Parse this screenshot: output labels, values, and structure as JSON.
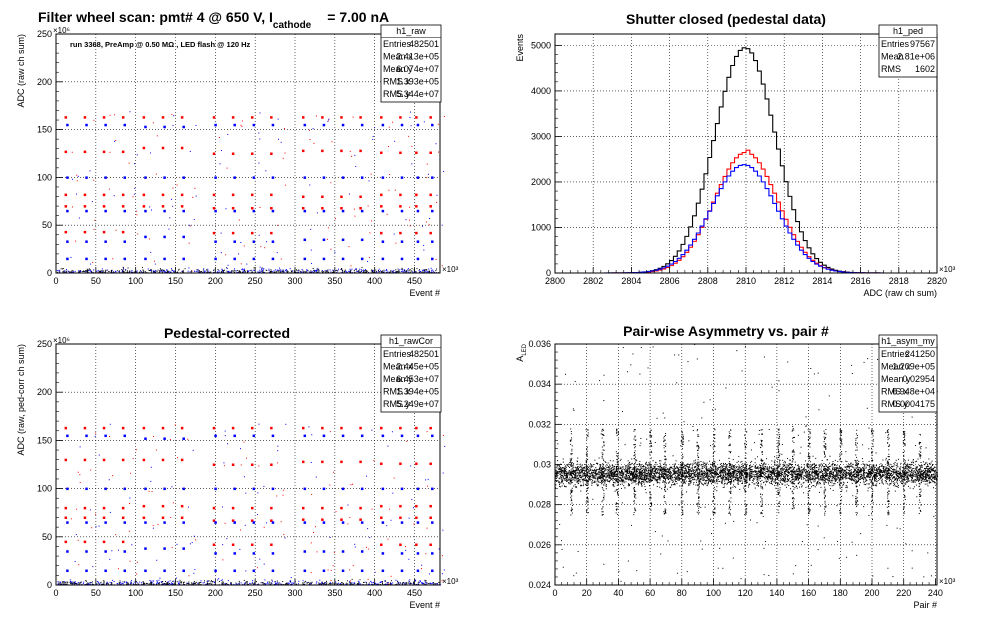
{
  "page": {
    "background": "#ffffff"
  },
  "colors": {
    "red": "#ff0000",
    "blue": "#0000ff",
    "black": "#000000"
  },
  "chart_data": [
    {
      "id": "raw",
      "type": "scatter",
      "title": "Filter wheel scan: pmt#   4 @   650 V, I",
      "title_sub": "cathode",
      "title_tail": "= 7.00 nA",
      "annotation": "run 3368, PreAmp @ 0.50 MΩ , LED flash @  120 Hz",
      "xlabel": "Event #",
      "ylabel": "ADC (raw ch sum)",
      "x_exponent": "×10³",
      "y_exponent": "×10⁶",
      "xlim": [
        0,
        482
      ],
      "ylim": [
        0,
        250
      ],
      "xticks": [
        0,
        50,
        100,
        150,
        200,
        250,
        300,
        350,
        400,
        450
      ],
      "yticks": [
        0,
        50,
        100,
        150,
        200,
        250
      ],
      "grid": true,
      "stats": {
        "name": "h1_raw",
        "rows": [
          [
            "Entries",
            "482501"
          ],
          [
            "Mean x",
            "2.413e+05"
          ],
          [
            "Mean y",
            "6.074e+07"
          ],
          [
            "RMS x",
            "1.393e+05"
          ],
          [
            "RMS y",
            "5.344e+07"
          ]
        ]
      },
      "level_groups": [
        {
          "x": [
            12,
            36,
            60,
            84
          ],
          "red": [
            163,
            127,
            82,
            70,
            43
          ],
          "blue": [
            155,
            100,
            65,
            33,
            15
          ]
        },
        {
          "x": [
            110,
            134,
            158
          ],
          "red": [
            163,
            131,
            82,
            70
          ],
          "blue": [
            153,
            100,
            65,
            38,
            15
          ]
        },
        {
          "x": [
            198,
            222,
            246,
            270
          ],
          "red": [
            163,
            125,
            82,
            68,
            42
          ],
          "blue": [
            155,
            100,
            65,
            33,
            15
          ]
        },
        {
          "x": [
            310,
            334,
            358,
            382
          ],
          "red": [
            163,
            128,
            80,
            68
          ],
          "blue": [
            155,
            100,
            65,
            35,
            15
          ]
        },
        {
          "x": [
            408,
            432,
            452,
            470
          ],
          "red": [
            163,
            126,
            82,
            70,
            42
          ],
          "blue": [
            155,
            100,
            65,
            33,
            15
          ]
        }
      ]
    },
    {
      "id": "ped",
      "type": "histogram",
      "title": "Shutter closed (pedestal data)",
      "xlabel": "ADC (raw ch sum)",
      "ylabel": "Events",
      "x_exponent": "×10³",
      "xlim": [
        2800,
        2820
      ],
      "ylim": [
        0,
        5250
      ],
      "xticks": [
        2800,
        2802,
        2804,
        2806,
        2808,
        2810,
        2812,
        2814,
        2816,
        2818,
        2820
      ],
      "yticks": [
        0,
        1000,
        2000,
        3000,
        4000,
        5000
      ],
      "grid": true,
      "stats": {
        "name": "h1_ped",
        "rows": [
          [
            "Entries",
            "97567"
          ],
          [
            "Mean",
            "2.81e+06"
          ],
          [
            "RMS",
            "1602"
          ]
        ]
      },
      "series": [
        {
          "color": "#000000",
          "center": 2809.95,
          "sigma": 1.6,
          "peak": 4950
        },
        {
          "color": "#ff0000",
          "center": 2810.0,
          "sigma": 1.65,
          "peak": 2650
        },
        {
          "color": "#0000ff",
          "center": 2809.9,
          "sigma": 1.7,
          "peak": 2380
        }
      ]
    },
    {
      "id": "rawCor",
      "type": "scatter",
      "title": "Pedestal-corrected",
      "xlabel": "Event #",
      "ylabel": "ADC (raw, ped-corr ch sum)",
      "x_exponent": "×10³",
      "y_exponent": "×10⁶",
      "xlim": [
        0,
        482
      ],
      "ylim": [
        0,
        250
      ],
      "xticks": [
        0,
        50,
        100,
        150,
        200,
        250,
        300,
        350,
        400,
        450
      ],
      "yticks": [
        0,
        50,
        100,
        150,
        200,
        250
      ],
      "grid": true,
      "stats": {
        "name": "h1_rawCor",
        "rows": [
          [
            "Entries",
            "482501"
          ],
          [
            "Mean x",
            "2.445e+05"
          ],
          [
            "Mean y",
            "6.453e+07"
          ],
          [
            "RMS x",
            "1.394e+05"
          ],
          [
            "RMS y",
            "5.249e+07"
          ]
        ]
      },
      "level_groups": [
        {
          "x": [
            12,
            36,
            60,
            84
          ],
          "red": [
            163,
            130,
            80,
            70,
            45
          ],
          "blue": [
            155,
            100,
            65,
            35,
            15
          ]
        },
        {
          "x": [
            110,
            134,
            158
          ],
          "red": [
            163,
            130,
            82,
            70
          ],
          "blue": [
            152,
            100,
            65,
            38,
            15
          ]
        },
        {
          "x": [
            198,
            222,
            246,
            270
          ],
          "red": [
            163,
            125,
            80,
            67,
            42
          ],
          "blue": [
            155,
            100,
            65,
            33,
            15
          ]
        },
        {
          "x": [
            310,
            334,
            358,
            382
          ],
          "red": [
            163,
            128,
            80,
            68
          ],
          "blue": [
            155,
            100,
            65,
            35,
            15
          ]
        },
        {
          "x": [
            408,
            432,
            452,
            470
          ],
          "red": [
            163,
            126,
            82,
            70,
            42
          ],
          "blue": [
            155,
            100,
            65,
            33,
            15
          ]
        }
      ]
    },
    {
      "id": "asym",
      "type": "scatter",
      "title": "Pair-wise Asymmetry vs. pair #",
      "xlabel": "Pair #",
      "ylabel": "A",
      "ylabel_sub": "LED",
      "x_exponent": "×10³",
      "xlim": [
        0,
        241
      ],
      "ylim": [
        0.024,
        0.036
      ],
      "xticks": [
        0,
        20,
        40,
        60,
        80,
        100,
        120,
        140,
        160,
        180,
        200,
        220,
        240
      ],
      "yticks": [
        0.024,
        0.026,
        0.028,
        0.03,
        0.032,
        0.034,
        0.036
      ],
      "ytick_labels": [
        "0.024",
        "0.026",
        "0.028",
        "0.03",
        "0.032",
        "0.034",
        "0.036"
      ],
      "grid": true,
      "stats": {
        "name": "h1_asym_my",
        "rows": [
          [
            "Entries",
            "241250"
          ],
          [
            "Mean x",
            "1.209e+05"
          ],
          [
            "Mean y",
            "0.02954"
          ],
          [
            "RMS x",
            "6.948e+04"
          ],
          [
            "RMS y",
            "0.0004175"
          ]
        ]
      },
      "band": {
        "center": 0.02955,
        "half_width": 0.0005
      },
      "spikes_x": [
        10,
        20,
        30,
        39,
        50,
        60,
        69,
        80,
        90,
        100,
        110,
        120,
        130,
        141,
        150,
        160,
        170,
        180,
        190,
        200,
        210,
        220,
        230
      ],
      "spike_range": [
        0.0275,
        0.0318
      ]
    }
  ]
}
